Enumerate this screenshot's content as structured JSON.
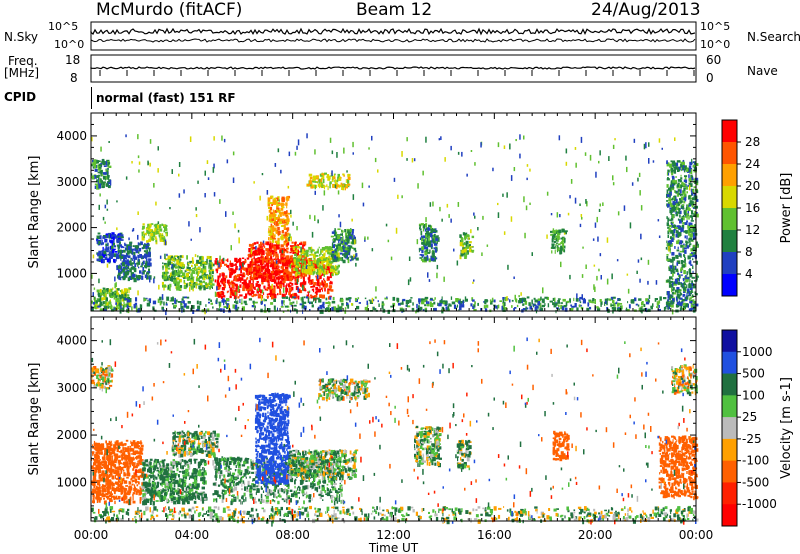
{
  "header": {
    "radar": "McMurdo (fitACF)",
    "beam": "Beam 12",
    "date": "24/Aug/2013"
  },
  "top_panels": {
    "nsky_label": "N.Sky",
    "nsky_ticks": [
      "10^5",
      "10^0"
    ],
    "nsearch_label": "N.Search",
    "nsearch_ticks": [
      "10^5",
      "10^0"
    ],
    "freq_label_1": "Freq.",
    "freq_label_2": "[MHz]",
    "freq_ticks": [
      "18",
      "8"
    ],
    "nave_label": "Nave",
    "nave_ticks": [
      "60",
      "0"
    ],
    "cpid_label": "CPID",
    "cpid_text": "normal (fast) 151 RF"
  },
  "chart_data": [
    {
      "type": "heatmap",
      "title": "",
      "xlabel": "Time UT",
      "ylabel": "Slant Range [km]",
      "x_ticks": [
        "00:00",
        "04:00",
        "08:00",
        "12:00",
        "16:00",
        "20:00",
        "00:00"
      ],
      "y_ticks": [
        1000,
        2000,
        3000,
        4000
      ],
      "ylim": [
        180,
        4500
      ],
      "colorbar": {
        "label": "Power [dB]",
        "ticks": [
          "28",
          "24",
          "20",
          "16",
          "12",
          "8",
          "4"
        ],
        "colors": [
          "#ff0000",
          "#ff5500",
          "#ffa000",
          "#d8d800",
          "#60c030",
          "#208040",
          "#2040c0",
          "#0000ff"
        ]
      },
      "blocks": [
        {
          "t0": 0.0,
          "t1": 0.7,
          "r0": 2900,
          "r1": 3500,
          "v": 8
        },
        {
          "t0": 0.1,
          "t1": 1.5,
          "r0": 250,
          "r1": 700,
          "v": 12
        },
        {
          "t0": 0.2,
          "t1": 1.2,
          "r0": 1300,
          "r1": 1900,
          "v": 4
        },
        {
          "t0": 1.0,
          "t1": 2.3,
          "r0": 900,
          "r1": 1700,
          "v": 6
        },
        {
          "t0": 2.0,
          "t1": 3.0,
          "r0": 1700,
          "r1": 2100,
          "v": 14
        },
        {
          "t0": 2.8,
          "t1": 4.8,
          "r0": 700,
          "r1": 1400,
          "v": 12
        },
        {
          "t0": 4.9,
          "t1": 9.5,
          "r0": 500,
          "r1": 1350,
          "v": 28
        },
        {
          "t0": 6.2,
          "t1": 8.5,
          "r0": 900,
          "r1": 1700,
          "v": 26
        },
        {
          "t0": 7.0,
          "t1": 7.8,
          "r0": 1700,
          "r1": 2700,
          "v": 20
        },
        {
          "t0": 8.0,
          "t1": 9.8,
          "r0": 1000,
          "r1": 1600,
          "v": 14
        },
        {
          "t0": 8.5,
          "t1": 10.2,
          "r0": 2900,
          "r1": 3200,
          "v": 16
        },
        {
          "t0": 9.5,
          "t1": 10.5,
          "r0": 1300,
          "r1": 2000,
          "v": 8
        },
        {
          "t0": 13.0,
          "t1": 13.7,
          "r0": 1300,
          "r1": 2100,
          "v": 8
        },
        {
          "t0": 14.6,
          "t1": 15.1,
          "r0": 1400,
          "r1": 1900,
          "v": 12
        },
        {
          "t0": 18.2,
          "t1": 18.8,
          "r0": 1500,
          "r1": 2000,
          "v": 10
        },
        {
          "t0": 22.8,
          "t1": 24.0,
          "r0": 300,
          "r1": 3500,
          "v": 8
        },
        {
          "t0": 0.0,
          "t1": 24.0,
          "r0": 200,
          "r1": 500,
          "v": 8
        }
      ]
    },
    {
      "type": "heatmap",
      "title": "",
      "xlabel": "Time UT",
      "ylabel": "Slant Range [km]",
      "x_ticks": [
        "00:00",
        "04:00",
        "08:00",
        "12:00",
        "16:00",
        "20:00",
        "00:00"
      ],
      "y_ticks": [
        1000,
        2000,
        3000,
        4000
      ],
      "ylim": [
        180,
        4500
      ],
      "colorbar": {
        "label": "Velocity [m s-1]",
        "ticks": [
          "1000",
          "500",
          "100",
          "25",
          "-25",
          "-100",
          "-500",
          "-1000"
        ],
        "colors": [
          "#1010a0",
          "#2050e0",
          "#207040",
          "#50c040",
          "#bbbbbb",
          "#ffa000",
          "#ff6000",
          "#ff2000",
          "#ff0000"
        ]
      },
      "blocks": [
        {
          "t0": 0.0,
          "t1": 0.8,
          "r0": 3000,
          "r1": 3500,
          "v": 0
        },
        {
          "t0": 0.0,
          "t1": 2.0,
          "r0": 600,
          "r1": 1900,
          "v": -300
        },
        {
          "t0": 0.0,
          "t1": 24.0,
          "r0": 200,
          "r1": 500,
          "v": 50
        },
        {
          "t0": 2.0,
          "t1": 4.5,
          "r0": 600,
          "r1": 1500,
          "v": 150
        },
        {
          "t0": 3.2,
          "t1": 5.0,
          "r0": 1600,
          "r1": 2100,
          "v": 80
        },
        {
          "t0": 4.8,
          "t1": 10.0,
          "r0": 600,
          "r1": 1550,
          "v": 130
        },
        {
          "t0": 6.5,
          "t1": 7.8,
          "r0": 1000,
          "r1": 2900,
          "v": 700
        },
        {
          "t0": 7.8,
          "t1": 10.5,
          "r0": 1100,
          "r1": 1700,
          "v": 60
        },
        {
          "t0": 9.0,
          "t1": 11.0,
          "r0": 2800,
          "r1": 3200,
          "v": 40
        },
        {
          "t0": 12.8,
          "t1": 13.8,
          "r0": 1400,
          "r1": 2200,
          "v": 60
        },
        {
          "t0": 14.5,
          "t1": 15.0,
          "r0": 1300,
          "r1": 1900,
          "v": 60
        },
        {
          "t0": 18.3,
          "t1": 18.9,
          "r0": 1500,
          "r1": 2100,
          "v": -300
        },
        {
          "t0": 22.5,
          "t1": 24.0,
          "r0": 700,
          "r1": 2000,
          "v": -300
        },
        {
          "t0": 23.0,
          "t1": 24.0,
          "r0": 2900,
          "r1": 3500,
          "v": 0
        }
      ]
    }
  ]
}
